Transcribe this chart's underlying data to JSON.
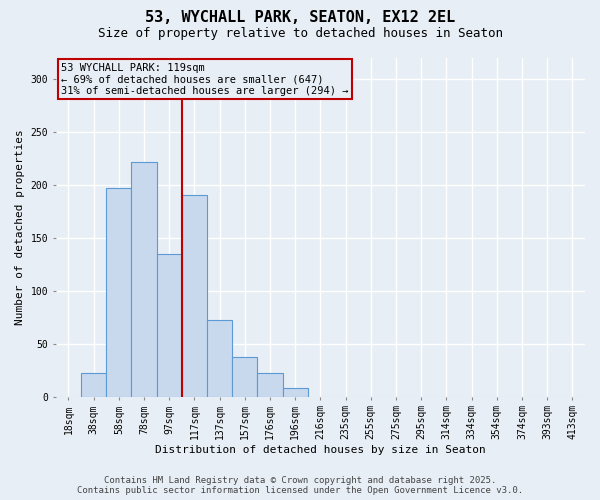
{
  "title": "53, WYCHALL PARK, SEATON, EX12 2EL",
  "subtitle": "Size of property relative to detached houses in Seaton",
  "xlabel": "Distribution of detached houses by size in Seaton",
  "ylabel": "Number of detached properties",
  "categories": [
    "18sqm",
    "38sqm",
    "58sqm",
    "78sqm",
    "97sqm",
    "117sqm",
    "137sqm",
    "157sqm",
    "176sqm",
    "196sqm",
    "216sqm",
    "235sqm",
    "255sqm",
    "275sqm",
    "295sqm",
    "314sqm",
    "334sqm",
    "354sqm",
    "374sqm",
    "393sqm",
    "413sqm"
  ],
  "values": [
    0,
    22,
    197,
    221,
    135,
    190,
    72,
    37,
    22,
    8,
    0,
    0,
    0,
    0,
    0,
    0,
    0,
    0,
    0,
    0,
    0
  ],
  "bar_color": "#c8d9ee",
  "bar_edge_color": "#5b9bd5",
  "vline_x": 4.5,
  "vline_color": "#c00000",
  "annotation_text": "53 WYCHALL PARK: 119sqm\n← 69% of detached houses are smaller (647)\n31% of semi-detached houses are larger (294) →",
  "annotation_box_color": "#c00000",
  "ylim": [
    0,
    320
  ],
  "yticks": [
    0,
    50,
    100,
    150,
    200,
    250,
    300
  ],
  "background_color": "#e8eef5",
  "grid_color": "#ffffff",
  "footer_line1": "Contains HM Land Registry data © Crown copyright and database right 2025.",
  "footer_line2": "Contains public sector information licensed under the Open Government Licence v3.0.",
  "title_fontsize": 11,
  "subtitle_fontsize": 9,
  "axis_label_fontsize": 8,
  "tick_fontsize": 7,
  "annotation_fontsize": 7.5,
  "footer_fontsize": 6.5
}
